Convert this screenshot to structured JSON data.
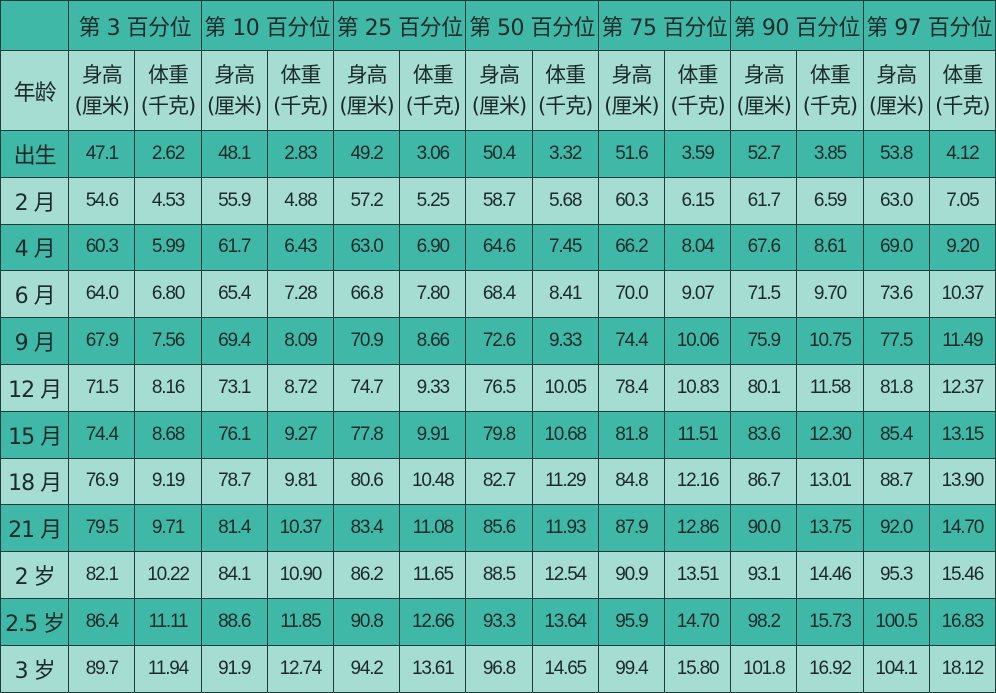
{
  "colors": {
    "dark_row": "#3fb8a8",
    "light_row": "#a6ddd3",
    "grid": "#1f3d3a"
  },
  "header": {
    "age_label": "年龄",
    "percentiles": [
      "第 3 百分位",
      "第 10 百分位",
      "第 25 百分位",
      "第 50 百分位",
      "第 75 百分位",
      "第 90 百分位",
      "第 97 百分位"
    ],
    "height_label": [
      "身高",
      "(厘米)"
    ],
    "weight_label": [
      "体重",
      "(千克)"
    ]
  },
  "rows": [
    {
      "age": "出生",
      "values": [
        "47.1",
        "2.62",
        "48.1",
        "2.83",
        "49.2",
        "3.06",
        "50.4",
        "3.32",
        "51.6",
        "3.59",
        "52.7",
        "3.85",
        "53.8",
        "4.12"
      ]
    },
    {
      "age": "2 月",
      "values": [
        "54.6",
        "4.53",
        "55.9",
        "4.88",
        "57.2",
        "5.25",
        "58.7",
        "5.68",
        "60.3",
        "6.15",
        "61.7",
        "6.59",
        "63.0",
        "7.05"
      ]
    },
    {
      "age": "4 月",
      "values": [
        "60.3",
        "5.99",
        "61.7",
        "6.43",
        "63.0",
        "6.90",
        "64.6",
        "7.45",
        "66.2",
        "8.04",
        "67.6",
        "8.61",
        "69.0",
        "9.20"
      ]
    },
    {
      "age": "6 月",
      "values": [
        "64.0",
        "6.80",
        "65.4",
        "7.28",
        "66.8",
        "7.80",
        "68.4",
        "8.41",
        "70.0",
        "9.07",
        "71.5",
        "9.70",
        "73.6",
        "10.37"
      ]
    },
    {
      "age": "9 月",
      "values": [
        "67.9",
        "7.56",
        "69.4",
        "8.09",
        "70.9",
        "8.66",
        "72.6",
        "9.33",
        "74.4",
        "10.06",
        "75.9",
        "10.75",
        "77.5",
        "11.49"
      ]
    },
    {
      "age": "12 月",
      "values": [
        "71.5",
        "8.16",
        "73.1",
        "8.72",
        "74.7",
        "9.33",
        "76.5",
        "10.05",
        "78.4",
        "10.83",
        "80.1",
        "11.58",
        "81.8",
        "12.37"
      ]
    },
    {
      "age": "15 月",
      "values": [
        "74.4",
        "8.68",
        "76.1",
        "9.27",
        "77.8",
        "9.91",
        "79.8",
        "10.68",
        "81.8",
        "11.51",
        "83.6",
        "12.30",
        "85.4",
        "13.15"
      ]
    },
    {
      "age": "18 月",
      "values": [
        "76.9",
        "9.19",
        "78.7",
        "9.81",
        "80.6",
        "10.48",
        "82.7",
        "11.29",
        "84.8",
        "12.16",
        "86.7",
        "13.01",
        "88.7",
        "13.90"
      ]
    },
    {
      "age": "21 月",
      "values": [
        "79.5",
        "9.71",
        "81.4",
        "10.37",
        "83.4",
        "11.08",
        "85.6",
        "11.93",
        "87.9",
        "12.86",
        "90.0",
        "13.75",
        "92.0",
        "14.70"
      ]
    },
    {
      "age": "2 岁",
      "values": [
        "82.1",
        "10.22",
        "84.1",
        "10.90",
        "86.2",
        "11.65",
        "88.5",
        "12.54",
        "90.9",
        "13.51",
        "93.1",
        "14.46",
        "95.3",
        "15.46"
      ]
    },
    {
      "age": "2.5 岁",
      "values": [
        "86.4",
        "11.11",
        "88.6",
        "11.85",
        "90.8",
        "12.66",
        "93.3",
        "13.64",
        "95.9",
        "14.70",
        "98.2",
        "15.73",
        "100.5",
        "16.83"
      ]
    },
    {
      "age": "3 岁",
      "values": [
        "89.7",
        "11.94",
        "91.9",
        "12.74",
        "94.2",
        "13.61",
        "96.8",
        "14.65",
        "99.4",
        "15.80",
        "101.8",
        "16.92",
        "104.1",
        "18.12"
      ]
    }
  ]
}
